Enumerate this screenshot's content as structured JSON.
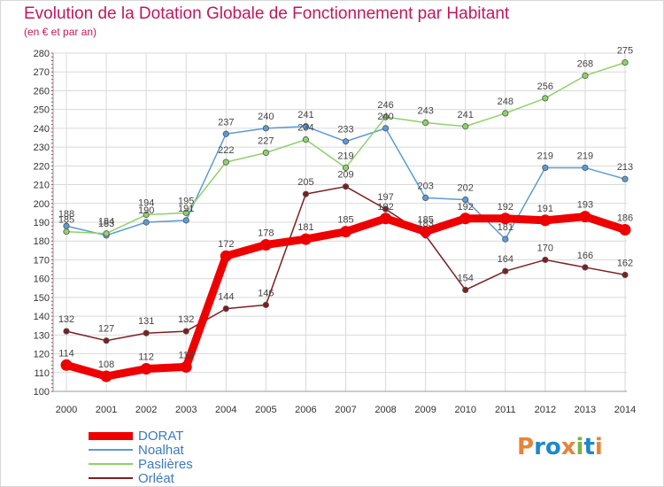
{
  "header": {
    "title": "Evolution de la Dotation Globale de Fonctionnement par Habitant",
    "subtitle": "(en € et par an)"
  },
  "logo": {
    "letters": [
      "P",
      "r",
      "o",
      "x",
      "i",
      "t",
      "i"
    ],
    "colors": [
      "#e8833a",
      "#1e88c8",
      "#1e88c8",
      "#e8833a",
      "#7cb342",
      "#1e88c8",
      "#e8833a"
    ]
  },
  "chart_data": {
    "type": "line",
    "title": "Evolution de la Dotation Globale de Fonctionnement par Habitant",
    "subtitle": "(en € et par an)",
    "x": [
      "2000",
      "2001",
      "2002",
      "2003",
      "2004",
      "2005",
      "2006",
      "2007",
      "2008",
      "2009",
      "2010",
      "2011",
      "2012",
      "2013",
      "2014"
    ],
    "yticks": [
      100,
      110,
      120,
      130,
      140,
      150,
      160,
      170,
      180,
      190,
      200,
      210,
      220,
      230,
      240,
      250,
      260,
      270,
      280
    ],
    "ylim": [
      100,
      280
    ],
    "grid": true,
    "legend_position": "bottom-left",
    "series": [
      {
        "name": "DORAT",
        "color": "#ee0000",
        "emphasis": true,
        "values": [
          114,
          108,
          112,
          113,
          172,
          178,
          181,
          185,
          192,
          185,
          192,
          192,
          191,
          193,
          186
        ]
      },
      {
        "name": "Noalhat",
        "color": "#5b9bd5",
        "values": [
          188,
          183,
          190,
          191,
          237,
          240,
          241,
          233,
          240,
          203,
          202,
          181,
          219,
          219,
          213
        ]
      },
      {
        "name": "Paslières",
        "color": "#8fd16a",
        "values": [
          185,
          184,
          194,
          195,
          222,
          227,
          234,
          219,
          246,
          243,
          241,
          248,
          256,
          268,
          275
        ]
      },
      {
        "name": "Orléat",
        "color": "#7b1f23",
        "values": [
          132,
          127,
          131,
          132,
          144,
          146,
          205,
          209,
          197,
          183,
          154,
          164,
          170,
          166,
          162
        ]
      }
    ]
  }
}
